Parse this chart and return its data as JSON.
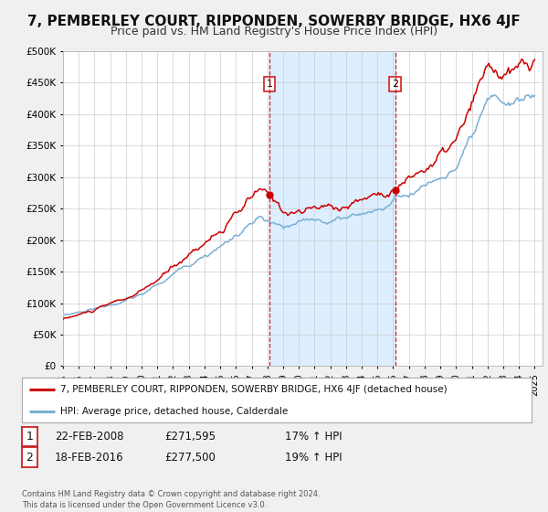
{
  "title": "7, PEMBERLEY COURT, RIPPONDEN, SOWERBY BRIDGE, HX6 4JF",
  "subtitle": "Price paid vs. HM Land Registry's House Price Index (HPI)",
  "legend_label_red": "7, PEMBERLEY COURT, RIPPONDEN, SOWERBY BRIDGE, HX6 4JF (detached house)",
  "legend_label_blue": "HPI: Average price, detached house, Calderdale",
  "transaction1_label": "1",
  "transaction2_label": "2",
  "transaction1_date": "22-FEB-2008",
  "transaction1_price": "£271,595",
  "transaction1_hpi": "17% ↑ HPI",
  "transaction2_date": "18-FEB-2016",
  "transaction2_price": "£277,500",
  "transaction2_hpi": "19% ↑ HPI",
  "copyright_text": "Contains HM Land Registry data © Crown copyright and database right 2024.\nThis data is licensed under the Open Government Licence v3.0.",
  "xmin": 1995.0,
  "xmax": 2025.5,
  "ymin": 0,
  "ymax": 500000,
  "transaction1_x": 2008.13,
  "transaction2_x": 2016.13,
  "red_color": "#cc0000",
  "blue_color": "#7aafd4",
  "shading_color": "#ddeeff",
  "background_color": "#f0f0f0",
  "plot_bg_color": "#ffffff",
  "grid_color": "#cccccc",
  "title_fontsize": 11,
  "subtitle_fontsize": 9
}
